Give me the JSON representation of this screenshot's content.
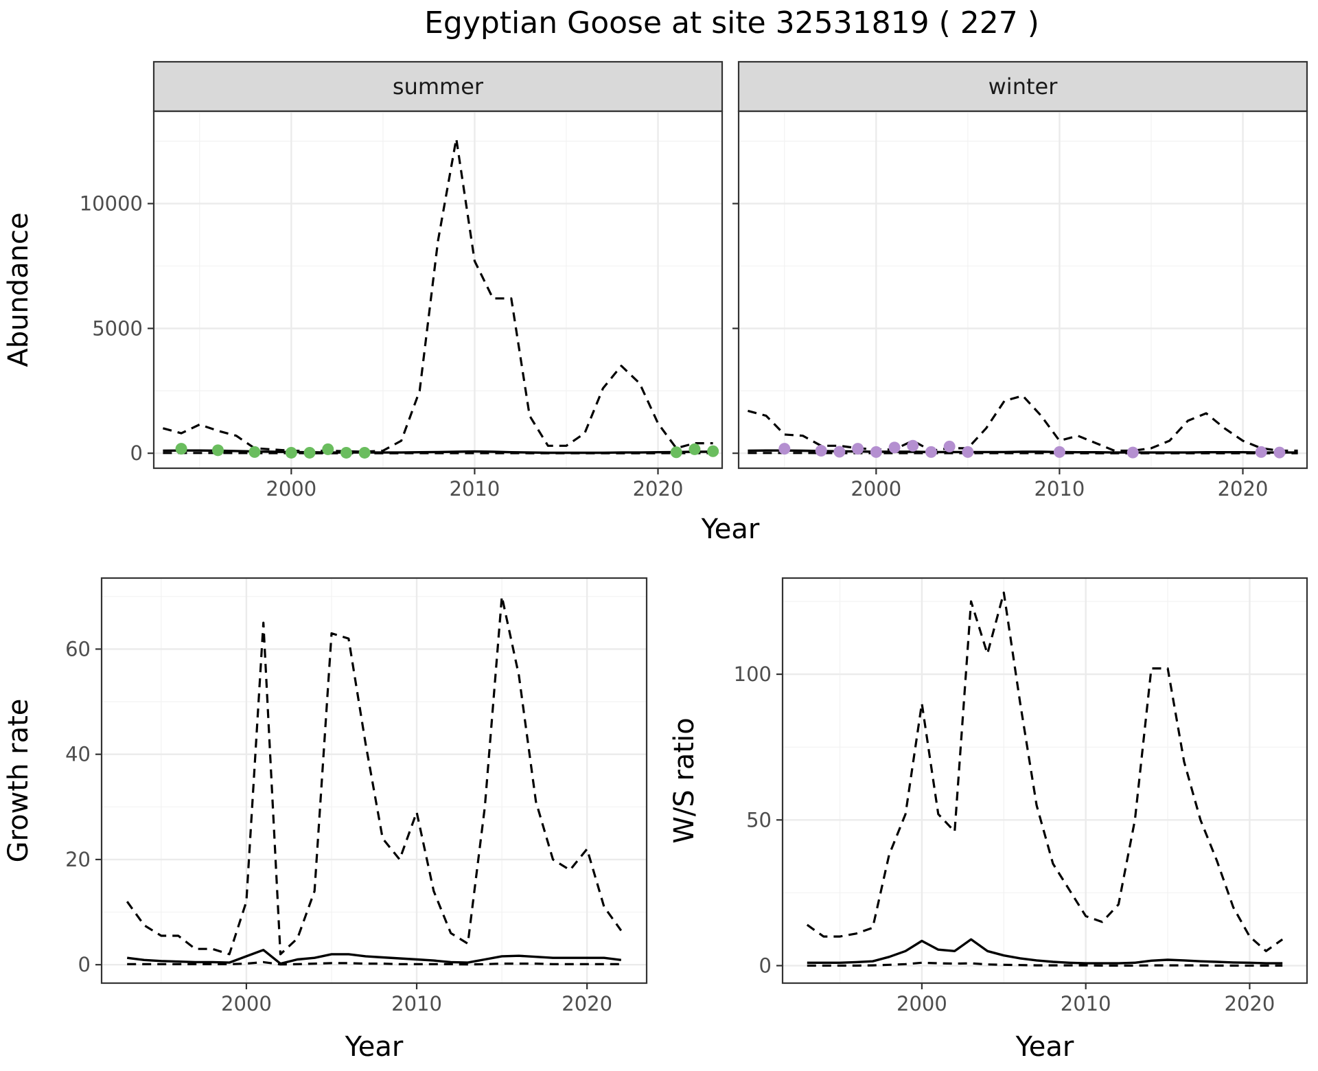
{
  "figure": {
    "title": "Egyptian Goose at site 32531819 ( 227 )"
  },
  "chart_data": [
    {
      "type": "line",
      "panel": "summer",
      "strip": "summer",
      "ylabel": "Abundance",
      "xlim": [
        1992.5,
        2023.5
      ],
      "ylim": [
        -600,
        13700
      ],
      "xticks": [
        2000,
        2010,
        2020
      ],
      "yticks": [
        0,
        5000,
        10000
      ],
      "grid": true,
      "point_color": "#6abd5e",
      "series": [
        {
          "style": "dashed",
          "x": [
            1993,
            1994,
            1995,
            1996,
            1997,
            1998,
            1999,
            2000,
            2001,
            2002,
            2003,
            2004,
            2005,
            2006,
            2007,
            2008,
            2009,
            2010,
            2011,
            2012,
            2013,
            2014,
            2015,
            2016,
            2017,
            2018,
            2019,
            2020,
            2021,
            2022,
            2023
          ],
          "values": [
            1000,
            800,
            1150,
            900,
            700,
            200,
            150,
            100,
            90,
            100,
            80,
            60,
            100,
            500,
            2500,
            8500,
            12600,
            7700,
            6200,
            6200,
            1500,
            300,
            300,
            800,
            2600,
            3500,
            2800,
            1200,
            200,
            400,
            400
          ]
        },
        {
          "style": "solid",
          "x": [
            1993,
            1994,
            1995,
            1996,
            1997,
            1998,
            1999,
            2000,
            2001,
            2002,
            2003,
            2004,
            2005,
            2006,
            2007,
            2008,
            2009,
            2010,
            2011,
            2012,
            2013,
            2014,
            2015,
            2016,
            2017,
            2018,
            2019,
            2020,
            2021,
            2022,
            2023
          ],
          "values": [
            100,
            110,
            110,
            100,
            90,
            70,
            60,
            50,
            40,
            30,
            30,
            30,
            30,
            30,
            40,
            50,
            60,
            70,
            60,
            40,
            30,
            20,
            20,
            20,
            20,
            30,
            30,
            40,
            50,
            60,
            60
          ]
        },
        {
          "style": "dashed",
          "x": [
            1993,
            1994,
            1995,
            1996,
            1997,
            1998,
            1999,
            2000,
            2001,
            2002,
            2003,
            2004,
            2005,
            2006,
            2007,
            2008,
            2009,
            2010,
            2011,
            2012,
            2013,
            2014,
            2015,
            2016,
            2017,
            2018,
            2019,
            2020,
            2021,
            2022,
            2023
          ],
          "values": [
            10,
            10,
            10,
            10,
            8,
            6,
            5,
            4,
            3,
            3,
            3,
            3,
            3,
            3,
            4,
            5,
            5,
            5,
            5,
            4,
            3,
            2,
            2,
            2,
            2,
            3,
            3,
            3,
            4,
            5,
            5
          ]
        }
      ],
      "points": {
        "x": [
          1994,
          1996,
          1998,
          2000,
          2001,
          2002,
          2003,
          2004,
          2021,
          2022,
          2023
        ],
        "values": [
          180,
          120,
          50,
          20,
          20,
          160,
          20,
          20,
          40,
          160,
          80
        ]
      }
    },
    {
      "type": "line",
      "panel": "winter",
      "strip": "winter",
      "ylabel": "",
      "xlim": [
        1992.5,
        2023.5
      ],
      "ylim": [
        -600,
        13700
      ],
      "xticks": [
        2000,
        2010,
        2020
      ],
      "yticks": [
        0,
        5000,
        10000
      ],
      "grid": true,
      "point_color": "#b48fd0",
      "series": [
        {
          "style": "dashed",
          "x": [
            1993,
            1994,
            1995,
            1996,
            1997,
            1998,
            1999,
            2000,
            2001,
            2002,
            2003,
            2004,
            2005,
            2006,
            2007,
            2008,
            2009,
            2010,
            2011,
            2012,
            2013,
            2014,
            2015,
            2016,
            2017,
            2018,
            2019,
            2020,
            2021,
            2022,
            2023
          ],
          "values": [
            1700,
            1500,
            750,
            700,
            300,
            300,
            200,
            150,
            150,
            500,
            100,
            200,
            200,
            1000,
            2100,
            2300,
            1500,
            500,
            700,
            400,
            100,
            100,
            200,
            500,
            1300,
            1600,
            1000,
            500,
            200,
            100,
            100
          ]
        },
        {
          "style": "solid",
          "x": [
            1993,
            1994,
            1995,
            1996,
            1997,
            1998,
            1999,
            2000,
            2001,
            2002,
            2003,
            2004,
            2005,
            2006,
            2007,
            2008,
            2009,
            2010,
            2011,
            2012,
            2013,
            2014,
            2015,
            2016,
            2017,
            2018,
            2019,
            2020,
            2021,
            2022,
            2023
          ],
          "values": [
            100,
            110,
            110,
            100,
            90,
            80,
            70,
            60,
            60,
            60,
            50,
            50,
            50,
            50,
            50,
            60,
            60,
            50,
            40,
            40,
            30,
            30,
            30,
            30,
            30,
            40,
            40,
            40,
            30,
            30,
            30
          ]
        },
        {
          "style": "dashed",
          "x": [
            1993,
            1994,
            1995,
            1996,
            1997,
            1998,
            1999,
            2000,
            2001,
            2002,
            2003,
            2004,
            2005,
            2006,
            2007,
            2008,
            2009,
            2010,
            2011,
            2012,
            2013,
            2014,
            2015,
            2016,
            2017,
            2018,
            2019,
            2020,
            2021,
            2022,
            2023
          ],
          "values": [
            10,
            10,
            10,
            10,
            8,
            6,
            5,
            5,
            5,
            5,
            4,
            4,
            4,
            4,
            4,
            5,
            5,
            4,
            3,
            3,
            2,
            2,
            2,
            2,
            2,
            3,
            3,
            3,
            2,
            2,
            2
          ]
        }
      ],
      "points": {
        "x": [
          1995,
          1997,
          1998,
          1999,
          2000,
          2001,
          2002,
          2003,
          2004,
          2005,
          2010,
          2014,
          2021,
          2022
        ],
        "values": [
          180,
          100,
          60,
          180,
          50,
          230,
          300,
          50,
          270,
          50,
          50,
          30,
          50,
          30
        ]
      }
    },
    {
      "type": "line",
      "panel": "growth",
      "xlabel": "Year",
      "ylabel": "Growth rate",
      "xlim": [
        1991.5,
        2023.5
      ],
      "ylim": [
        -3.5,
        73.5
      ],
      "xticks": [
        2000,
        2010,
        2020
      ],
      "yticks": [
        0,
        20,
        40,
        60
      ],
      "grid": true,
      "series": [
        {
          "style": "dashed",
          "x": [
            1993,
            1994,
            1995,
            1996,
            1997,
            1998,
            1999,
            2000,
            2001,
            2002,
            2003,
            2004,
            2005,
            2006,
            2007,
            2008,
            2009,
            2010,
            2011,
            2012,
            2013,
            2014,
            2015,
            2016,
            2017,
            2018,
            2019,
            2020,
            2021,
            2022
          ],
          "values": [
            12,
            7.5,
            5.5,
            5.5,
            3,
            3,
            2,
            12,
            65,
            2,
            5,
            14,
            63,
            62,
            42,
            24,
            20,
            29,
            14,
            6,
            4,
            30,
            70,
            55,
            31,
            20,
            18,
            22,
            11,
            6.5
          ]
        },
        {
          "style": "solid",
          "x": [
            1993,
            1994,
            1995,
            1996,
            1997,
            1998,
            1999,
            2000,
            2001,
            2002,
            2003,
            2004,
            2005,
            2006,
            2007,
            2008,
            2009,
            2010,
            2011,
            2012,
            2013,
            2014,
            2015,
            2016,
            2017,
            2018,
            2019,
            2020,
            2021,
            2022
          ],
          "values": [
            1.3,
            0.9,
            0.7,
            0.6,
            0.5,
            0.5,
            0.4,
            1.6,
            2.8,
            0.2,
            1,
            1.3,
            2,
            2,
            1.6,
            1.4,
            1.2,
            1,
            0.8,
            0.5,
            0.4,
            1,
            1.6,
            1.7,
            1.5,
            1.3,
            1.3,
            1.3,
            1.3,
            0.9
          ]
        },
        {
          "style": "dashed",
          "x": [
            1993,
            1994,
            1995,
            1996,
            1997,
            1998,
            1999,
            2000,
            2001,
            2002,
            2003,
            2004,
            2005,
            2006,
            2007,
            2008,
            2009,
            2010,
            2011,
            2012,
            2013,
            2014,
            2015,
            2016,
            2017,
            2018,
            2019,
            2020,
            2021,
            2022
          ],
          "values": [
            0.1,
            0.1,
            0.1,
            0.1,
            0.1,
            0.1,
            0.1,
            0.2,
            0.5,
            0.05,
            0.1,
            0.2,
            0.3,
            0.3,
            0.2,
            0.2,
            0.1,
            0.1,
            0.1,
            0.1,
            0.05,
            0.1,
            0.2,
            0.2,
            0.2,
            0.1,
            0.1,
            0.1,
            0.1,
            0.1
          ]
        }
      ]
    },
    {
      "type": "line",
      "panel": "ws_ratio",
      "xlabel": "Year",
      "ylabel": "W/S ratio",
      "xlim": [
        1991.5,
        2023.5
      ],
      "ylim": [
        -6,
        133
      ],
      "xticks": [
        2000,
        2010,
        2020
      ],
      "yticks": [
        0,
        50,
        100
      ],
      "grid": true,
      "series": [
        {
          "style": "dashed",
          "x": [
            1993,
            1994,
            1995,
            1996,
            1997,
            1998,
            1999,
            2000,
            2001,
            2002,
            2003,
            2004,
            2005,
            2006,
            2007,
            2008,
            2009,
            2010,
            2011,
            2012,
            2013,
            2014,
            2015,
            2016,
            2017,
            2018,
            2019,
            2020,
            2021,
            2022
          ],
          "values": [
            14,
            10,
            10,
            11,
            13,
            38,
            52,
            90,
            52,
            46,
            125,
            107,
            128,
            90,
            55,
            35,
            26,
            17,
            15,
            21,
            50,
            102,
            102,
            70,
            50,
            36,
            20,
            10,
            5,
            9
          ]
        },
        {
          "style": "solid",
          "x": [
            1993,
            1994,
            1995,
            1996,
            1997,
            1998,
            1999,
            2000,
            2001,
            2002,
            2003,
            2004,
            2005,
            2006,
            2007,
            2008,
            2009,
            2010,
            2011,
            2012,
            2013,
            2014,
            2015,
            2016,
            2017,
            2018,
            2019,
            2020,
            2021,
            2022
          ],
          "values": [
            1,
            1,
            1,
            1.2,
            1.5,
            3,
            5,
            8.5,
            5.5,
            5,
            9,
            5,
            3.5,
            2.5,
            1.8,
            1.3,
            1,
            0.8,
            0.8,
            0.8,
            1,
            1.7,
            2,
            1.8,
            1.5,
            1.3,
            1.1,
            1,
            0.8,
            0.8
          ]
        },
        {
          "style": "dashed",
          "x": [
            1993,
            1994,
            1995,
            1996,
            1997,
            1998,
            1999,
            2000,
            2001,
            2002,
            2003,
            2004,
            2005,
            2006,
            2007,
            2008,
            2009,
            2010,
            2011,
            2012,
            2013,
            2014,
            2015,
            2016,
            2017,
            2018,
            2019,
            2020,
            2021,
            2022
          ],
          "values": [
            0,
            0,
            0,
            0,
            0.1,
            0.3,
            0.5,
            1,
            0.8,
            0.7,
            0.8,
            0.4,
            0.3,
            0.2,
            0.1,
            0.1,
            0.1,
            0.1,
            0,
            0,
            0,
            0.1,
            0.1,
            0.1,
            0.1,
            0,
            0,
            0,
            0,
            0
          ]
        }
      ]
    }
  ],
  "shared_axes": {
    "top_xlabel": "Year"
  }
}
